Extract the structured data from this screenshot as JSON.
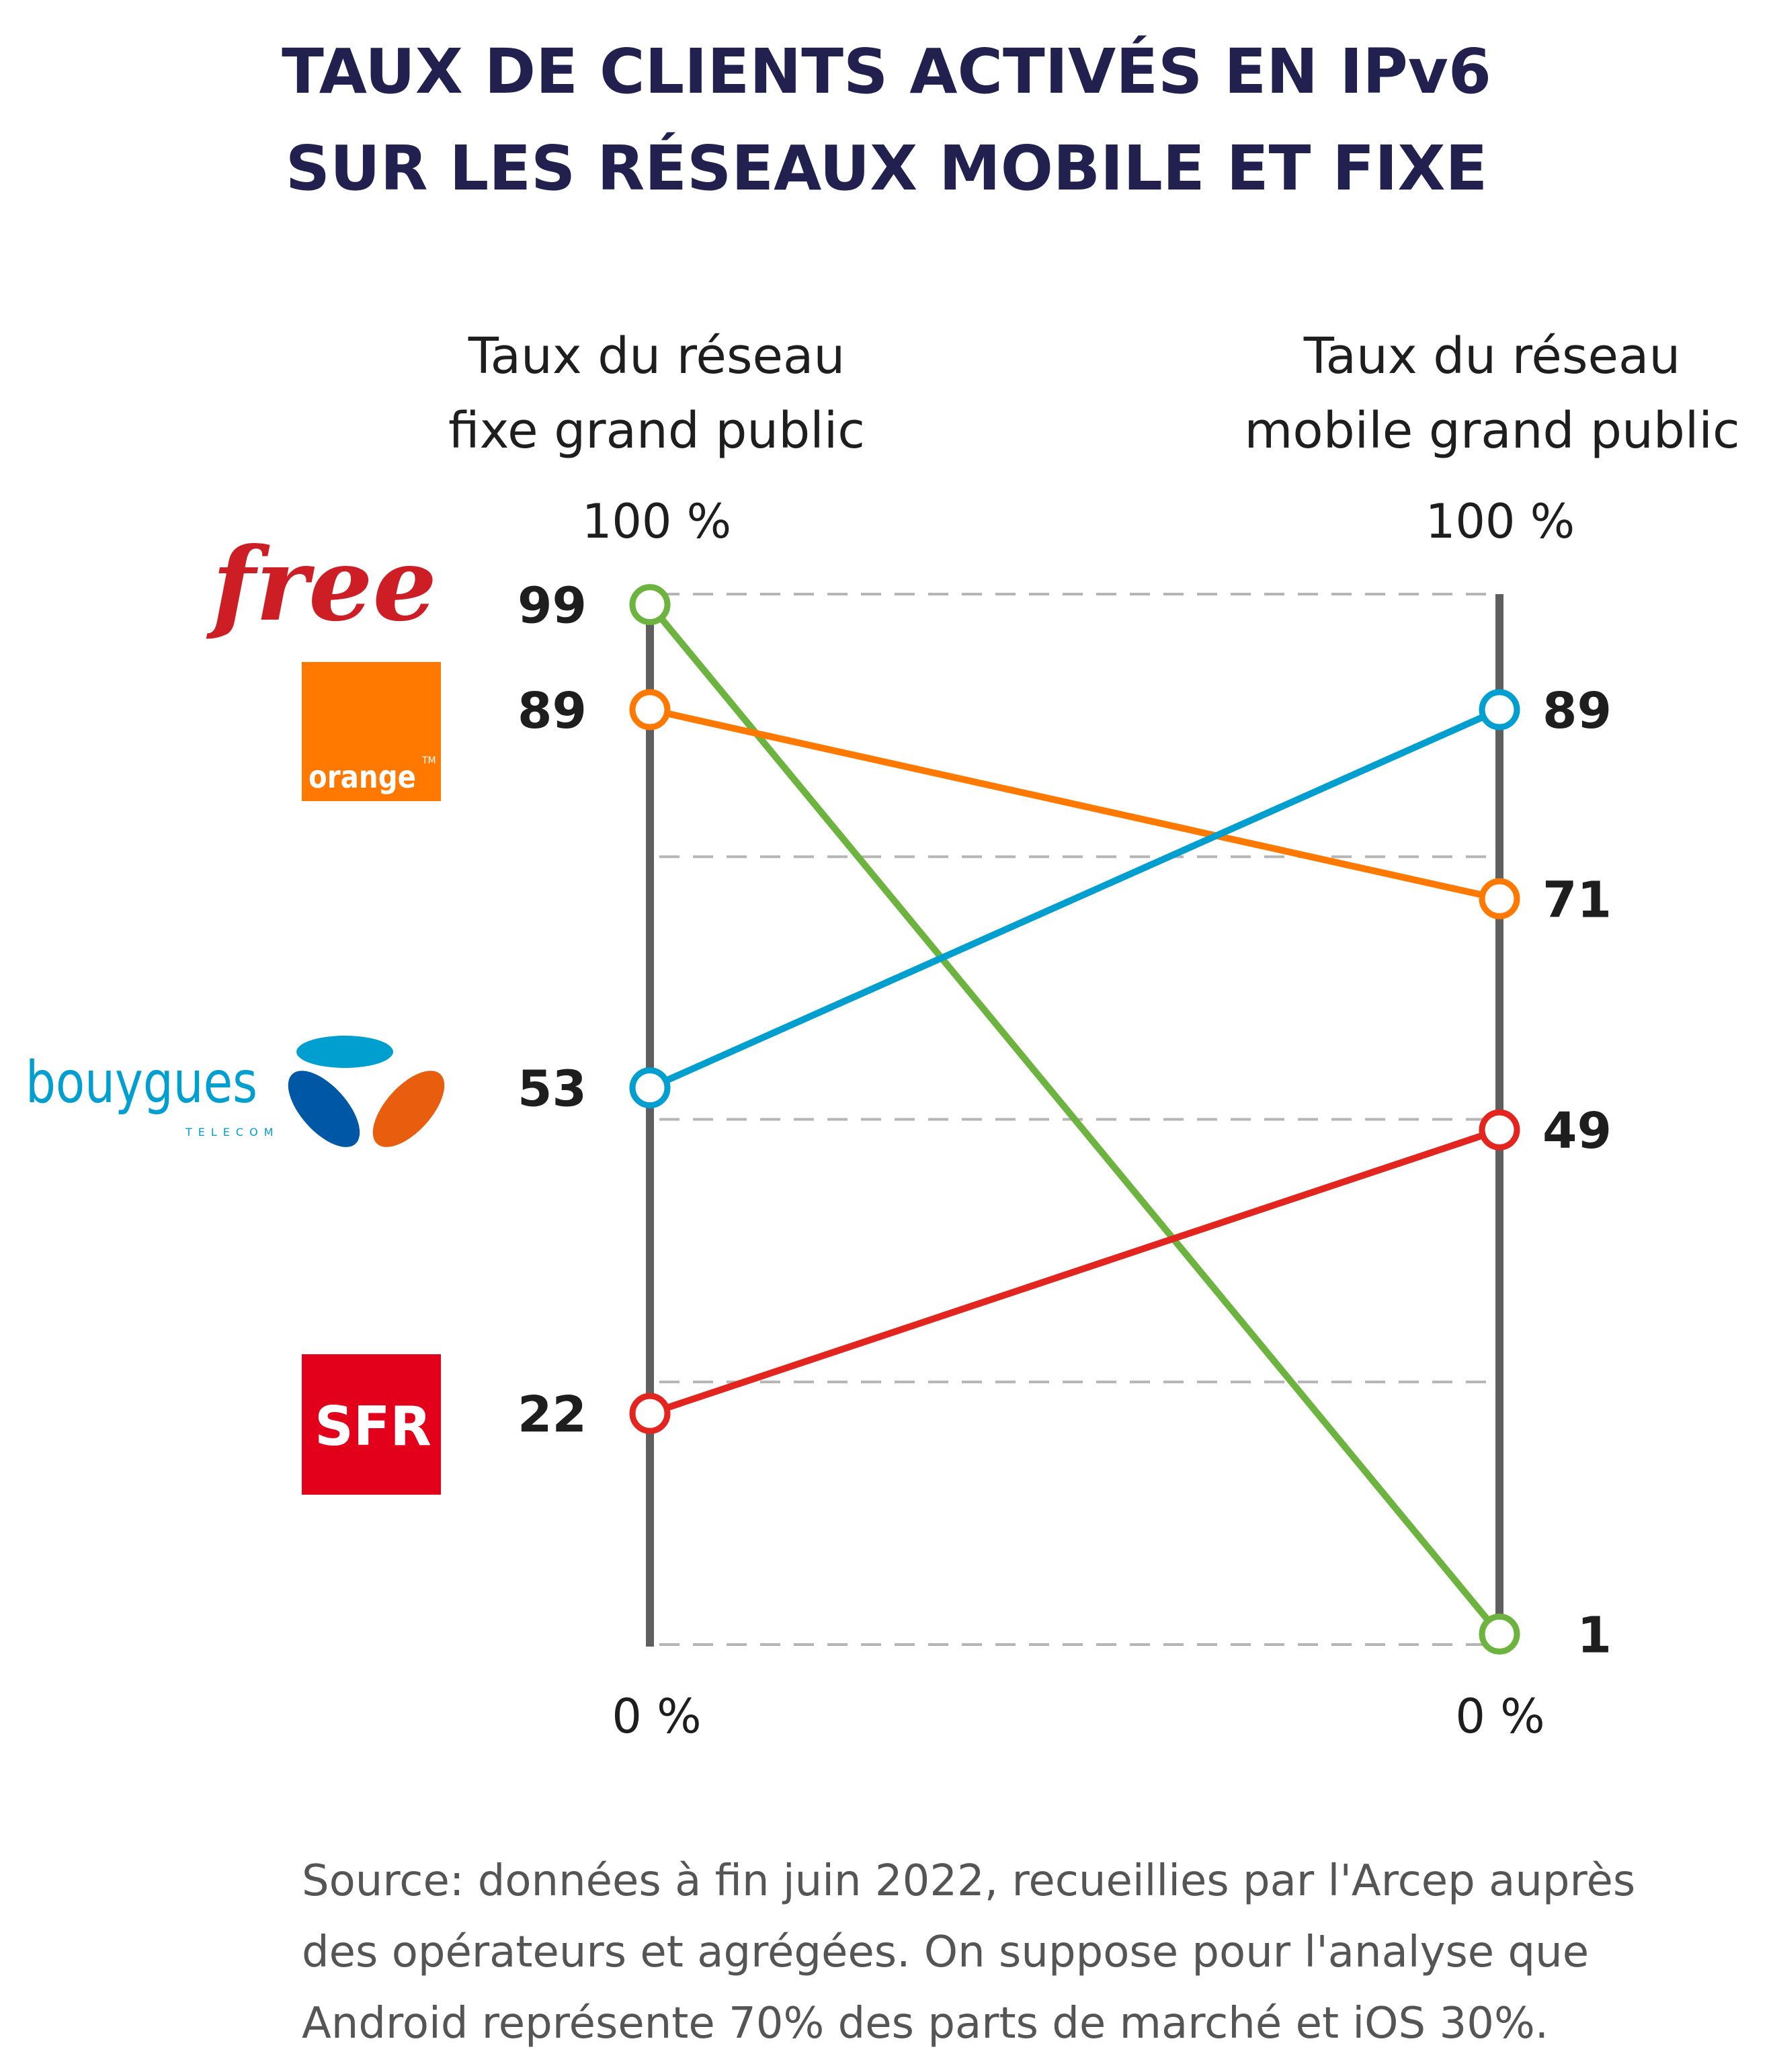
{
  "chart_data": {
    "type": "slope",
    "title": [
      "TAUX DE CLIENTS ACTIVÉS EN IPv6",
      "SUR LES RÉSEAUX MOBILE ET FIXE"
    ],
    "axes": [
      {
        "label": [
          "Taux du réseau",
          "fixe grand public"
        ],
        "top_tick": "100 %",
        "bottom_tick": "0 %"
      },
      {
        "label": [
          "Taux du réseau",
          "mobile grand public"
        ],
        "top_tick": "100 %",
        "bottom_tick": "0 %"
      }
    ],
    "ylim": [
      0,
      100
    ],
    "grid": [
      0,
      25,
      50,
      75,
      100
    ],
    "series": [
      {
        "name": "free",
        "color": "#6db33f",
        "values": [
          99,
          1
        ]
      },
      {
        "name": "orange",
        "color": "#ff7900",
        "values": [
          89,
          71
        ]
      },
      {
        "name": "bouygues",
        "color": "#009fd0",
        "values": [
          53,
          89
        ]
      },
      {
        "name": "SFR",
        "color": "#e3251f",
        "values": [
          22,
          49
        ]
      }
    ],
    "source": [
      "Source: données à fin juin 2022, recueillies par l'Arcep auprès",
      "des opérateurs et agrégées. On suppose pour l'analyse que",
      "Android représente 70% des parts de marché et iOS 30%."
    ]
  },
  "logos": {
    "free": "free",
    "orange": "orange",
    "orange_tm": "TM",
    "bouygues": "bouygues",
    "bouygues_sub": "TELECOM",
    "sfr": "SFR"
  }
}
